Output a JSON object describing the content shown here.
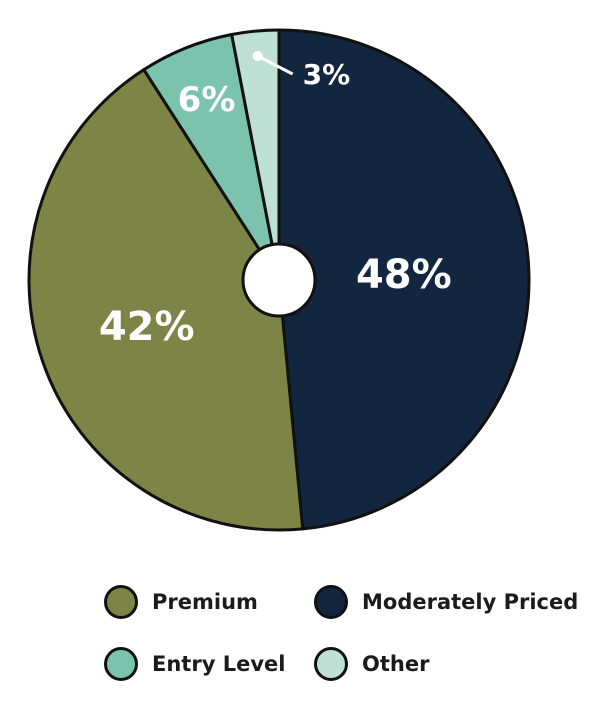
{
  "chart_data": {
    "type": "pie",
    "title": "",
    "categories": [
      "Moderately Priced",
      "Premium",
      "Entry Level",
      "Other"
    ],
    "values": [
      48,
      42,
      6,
      3
    ],
    "labels": [
      "48%",
      "42%",
      "6%",
      "3%"
    ],
    "colors": [
      "#13263f",
      "#7c8446",
      "#7cc3ae",
      "#bfe1d5"
    ],
    "donut_hole": true,
    "legend_position": "bottom"
  },
  "legend": {
    "items": [
      {
        "label": "Premium",
        "color": "#7c8446"
      },
      {
        "label": "Moderately Priced",
        "color": "#13263f"
      },
      {
        "label": "Entry Level",
        "color": "#7cc3ae"
      },
      {
        "label": "Other",
        "color": "#bfe1d5"
      }
    ]
  }
}
